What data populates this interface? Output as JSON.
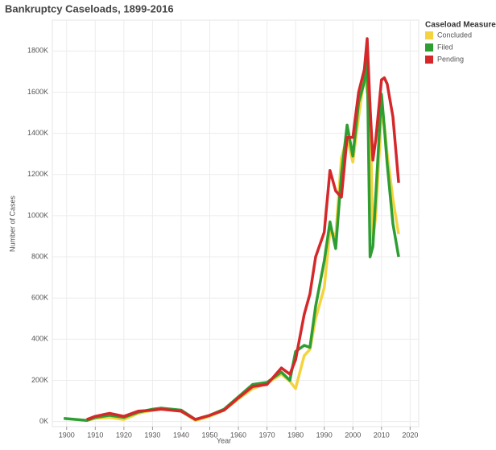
{
  "chart_data": {
    "type": "line",
    "title": "Bankruptcy Caseloads, 1899-2016",
    "x_label": "Year",
    "y_label": "Number of Cases",
    "legend_title": "Caseload Measures",
    "legend": "right",
    "grid": true,
    "x": [
      1899,
      1905,
      1907,
      1910,
      1915,
      1920,
      1925,
      1930,
      1933,
      1940,
      1945,
      1950,
      1955,
      1960,
      1965,
      1970,
      1975,
      1978,
      1980,
      1983,
      1985,
      1987,
      1990,
      1992,
      1994,
      1996,
      1998,
      2000,
      2002,
      2004,
      2005,
      2006,
      2007,
      2008,
      2010,
      2011,
      2012,
      2014,
      2016
    ],
    "series": [
      {
        "name": "Concluded",
        "color": "#f5d33f",
        "values": [
          null,
          null,
          5000,
          15000,
          20000,
          10000,
          40000,
          55000,
          60000,
          50000,
          5000,
          25000,
          55000,
          110000,
          160000,
          185000,
          230000,
          195000,
          160000,
          320000,
          350000,
          500000,
          650000,
          930000,
          900000,
          1280000,
          1380000,
          1260000,
          1480000,
          1680000,
          1600000,
          1550000,
          880000,
          1000000,
          1500000,
          1440000,
          1300000,
          1080000,
          910000
        ]
      },
      {
        "name": "Filed",
        "color": "#2e9e33",
        "values": [
          15000,
          8000,
          5000,
          20000,
          30000,
          20000,
          45000,
          60000,
          65000,
          55000,
          10000,
          30000,
          60000,
          120000,
          180000,
          190000,
          240000,
          200000,
          340000,
          370000,
          360000,
          560000,
          780000,
          970000,
          840000,
          1200000,
          1440000,
          1290000,
          1550000,
          1650000,
          1780000,
          800000,
          850000,
          1100000,
          1590000,
          1430000,
          1250000,
          960000,
          800000
        ]
      },
      {
        "name": "Pending",
        "color": "#d4282a",
        "values": [
          null,
          null,
          10000,
          25000,
          40000,
          25000,
          50000,
          55000,
          60000,
          50000,
          10000,
          30000,
          55000,
          115000,
          170000,
          180000,
          260000,
          230000,
          300000,
          520000,
          620000,
          800000,
          920000,
          1220000,
          1120000,
          1090000,
          1380000,
          1380000,
          1600000,
          1710000,
          1860000,
          1530000,
          1270000,
          1370000,
          1660000,
          1670000,
          1640000,
          1480000,
          1160000
        ]
      }
    ],
    "xlim": [
      1895,
      2023
    ],
    "xticks": [
      1900,
      1910,
      1920,
      1930,
      1940,
      1950,
      1960,
      1970,
      1980,
      1990,
      2000,
      2010,
      2020
    ],
    "ylim": [
      -25000,
      1950000
    ],
    "yticks": [
      {
        "value": 0,
        "label": "0K"
      },
      {
        "value": 200000,
        "label": "200K"
      },
      {
        "value": 400000,
        "label": "400K"
      },
      {
        "value": 600000,
        "label": "600K"
      },
      {
        "value": 800000,
        "label": "800K"
      },
      {
        "value": 1000000,
        "label": "1000K"
      },
      {
        "value": 1200000,
        "label": "1200K"
      },
      {
        "value": 1400000,
        "label": "1400K"
      },
      {
        "value": 1600000,
        "label": "1600K"
      },
      {
        "value": 1800000,
        "label": "1800K"
      }
    ]
  }
}
